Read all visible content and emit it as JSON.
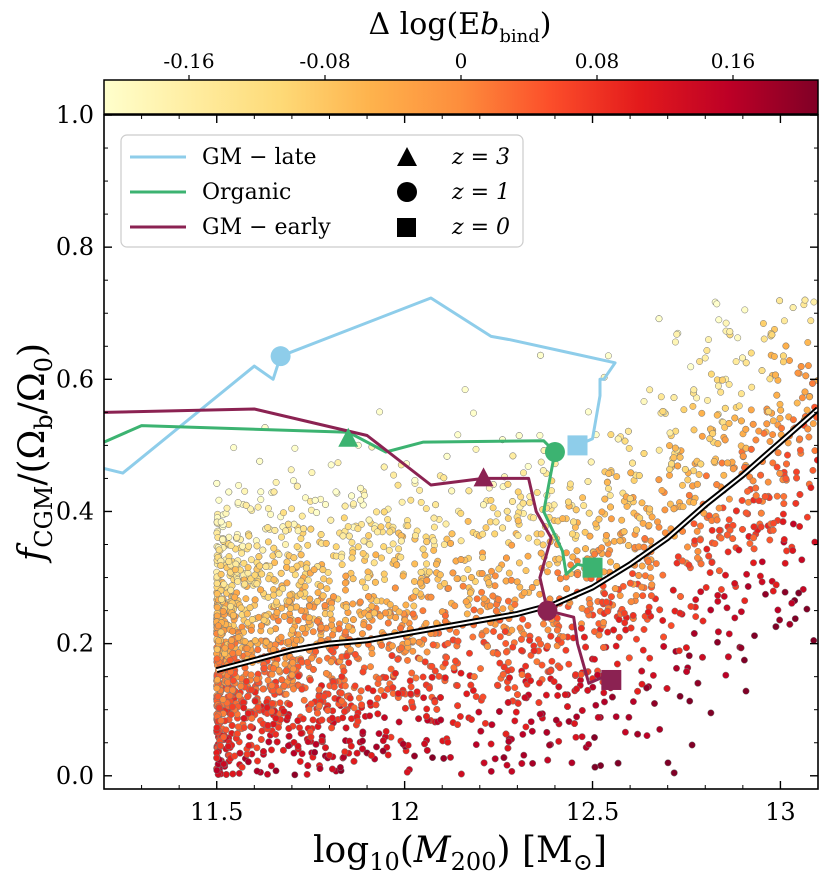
{
  "chart_data": {
    "type": "scatter",
    "title": "",
    "xlabel": "log10(M200) [M⊙]",
    "ylabel": "fCGM/(Ωb/Ω0)",
    "xlim": [
      11.2,
      13.1
    ],
    "ylim": [
      -0.02,
      1.0
    ],
    "xticks": [
      "11.5",
      "12",
      "12.5",
      "13"
    ],
    "xtick_values": [
      11.5,
      12.0,
      12.5,
      13.0
    ],
    "yticks": [
      "0.0",
      "0.2",
      "0.4",
      "0.6",
      "0.8",
      "1.0"
    ],
    "ytick_values": [
      0.0,
      0.2,
      0.4,
      0.6,
      0.8,
      1.0
    ],
    "colorbar": {
      "label": "Δ log(Ebbind)",
      "range": [
        -0.21,
        0.21
      ],
      "ticks": [
        "-0.16",
        "-0.08",
        "0",
        "0.08",
        "0.16"
      ],
      "tick_values": [
        -0.16,
        -0.08,
        0.0,
        0.08,
        0.16
      ],
      "colormap": "YlOrRd",
      "colors": [
        "#ffffcc",
        "#ffeda0",
        "#fed976",
        "#feb24c",
        "#fd8d3c",
        "#fc4e2a",
        "#e31a1c",
        "#bd0026",
        "#800026"
      ]
    },
    "median_line": {
      "name": "median",
      "x": [
        11.5,
        11.6,
        11.7,
        11.8,
        11.9,
        12.0,
        12.1,
        12.2,
        12.3,
        12.4,
        12.5,
        12.6,
        12.7,
        12.8,
        12.9,
        13.0,
        13.1
      ],
      "y": [
        0.16,
        0.175,
        0.19,
        0.2,
        0.205,
        0.215,
        0.225,
        0.235,
        0.245,
        0.26,
        0.285,
        0.32,
        0.36,
        0.41,
        0.455,
        0.505,
        0.555
      ]
    },
    "series": [
      {
        "name": "GM − late",
        "color": "#8ecdea",
        "x": [
          11.2,
          11.25,
          11.6,
          11.65,
          11.67,
          12.07,
          12.23,
          12.28,
          12.44,
          12.56,
          12.53,
          12.52,
          12.52,
          12.5,
          12.46
        ],
        "y": [
          0.465,
          0.458,
          0.62,
          0.6,
          0.635,
          0.723,
          0.665,
          0.66,
          0.64,
          0.625,
          0.6,
          0.6,
          0.575,
          0.51,
          0.5
        ],
        "z3": null,
        "z1": {
          "x": 11.67,
          "y": 0.635
        },
        "z0": {
          "x": 12.46,
          "y": 0.5
        }
      },
      {
        "name": "Organic",
        "color": "#3cb371",
        "x": [
          11.2,
          11.3,
          11.85,
          11.95,
          12.05,
          12.37,
          12.4,
          12.37,
          12.42,
          12.43,
          12.46,
          12.5
        ],
        "y": [
          0.505,
          0.53,
          0.52,
          0.49,
          0.505,
          0.507,
          0.49,
          0.4,
          0.34,
          0.305,
          0.32,
          0.315
        ],
        "z3": {
          "x": 11.85,
          "y": 0.51
        },
        "z1": {
          "x": 12.4,
          "y": 0.49
        },
        "z0": {
          "x": 12.5,
          "y": 0.315
        }
      },
      {
        "name": "GM − early",
        "color": "#8b2252",
        "x": [
          11.2,
          11.6,
          11.9,
          12.07,
          12.21,
          12.33,
          12.35,
          12.39,
          12.36,
          12.38,
          12.45,
          12.46,
          12.49,
          12.53,
          12.55
        ],
        "y": [
          0.55,
          0.555,
          0.515,
          0.44,
          0.45,
          0.45,
          0.4,
          0.36,
          0.3,
          0.25,
          0.24,
          0.2,
          0.14,
          0.15,
          0.145
        ],
        "z3": {
          "x": 12.21,
          "y": 0.45
        },
        "z1": {
          "x": 12.38,
          "y": 0.25
        },
        "z0": {
          "x": 12.55,
          "y": 0.145
        }
      }
    ],
    "scatter_cloud": {
      "n_points": 3500,
      "x_range": [
        11.5,
        13.1
      ],
      "y_range": [
        0.0,
        0.73
      ],
      "note": "population of haloes colored by Δ log(Ebbind)"
    },
    "legend": {
      "location": "top-left",
      "lines": [
        "GM − late",
        "Organic",
        "GM − early"
      ],
      "markers": [
        {
          "shape": "triangle",
          "label": "z = 3"
        },
        {
          "shape": "circle",
          "label": "z = 1"
        },
        {
          "shape": "square",
          "label": "z = 0"
        }
      ]
    }
  }
}
